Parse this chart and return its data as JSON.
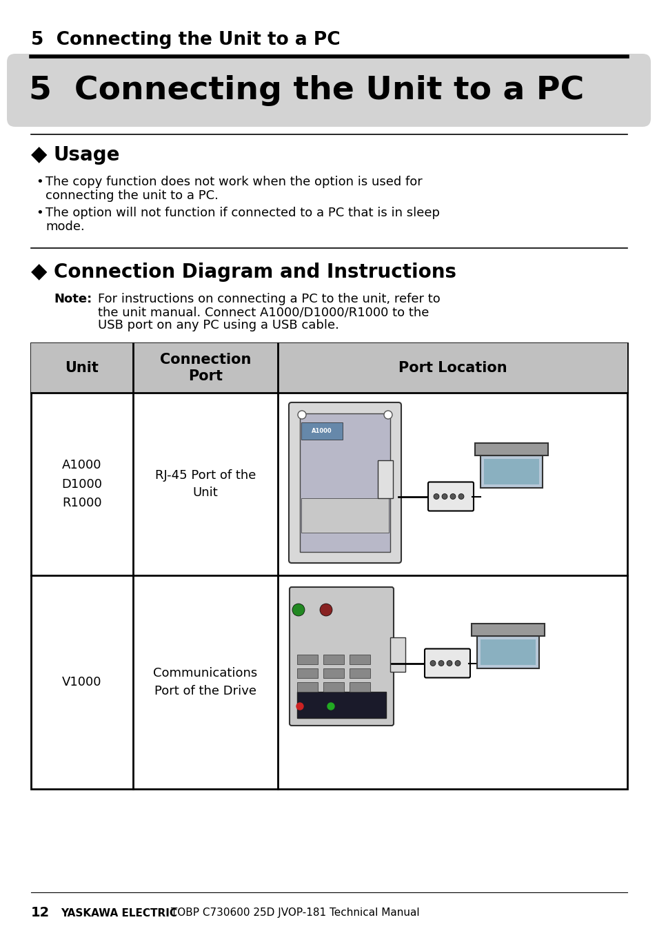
{
  "page_bg": "#ffffff",
  "top_header_text": "5  Connecting the Unit to a PC",
  "banner_bg": "#d3d3d3",
  "banner_text": "5  Connecting the Unit to a PC",
  "section1_diamond": "◆",
  "section1_title": "Usage",
  "bullet1_line1": "The copy function does not work when the option is used for",
  "bullet1_line2": "connecting the unit to a PC.",
  "bullet2_line1": "The option will not function if connected to a PC that is in sleep",
  "bullet2_line2": "mode.",
  "section2_diamond": "◆",
  "section2_title": "Connection Diagram and Instructions",
  "note_label": "Note:",
  "note_line1": "For instructions on connecting a PC to the unit, refer to",
  "note_line2": "the unit manual. Connect A1000/D1000/R1000 to the",
  "note_line3": "USB port on any PC using a USB cable.",
  "table_header_bg": "#c0c0c0",
  "table_col1": "Unit",
  "table_col2": "Connection\nPort",
  "table_col3": "Port Location",
  "row1_unit": "A1000\nD1000\nR1000",
  "row1_port": "RJ-45 Port of the\nUnit",
  "row2_unit": "V1000",
  "row2_port": "Communications\nPort of the Drive",
  "footer_page": "12",
  "footer_bold": "YASKAWA ELECTRIC",
  "footer_normal": " TOBP C730600 25D JVOP-181 Technical Manual"
}
